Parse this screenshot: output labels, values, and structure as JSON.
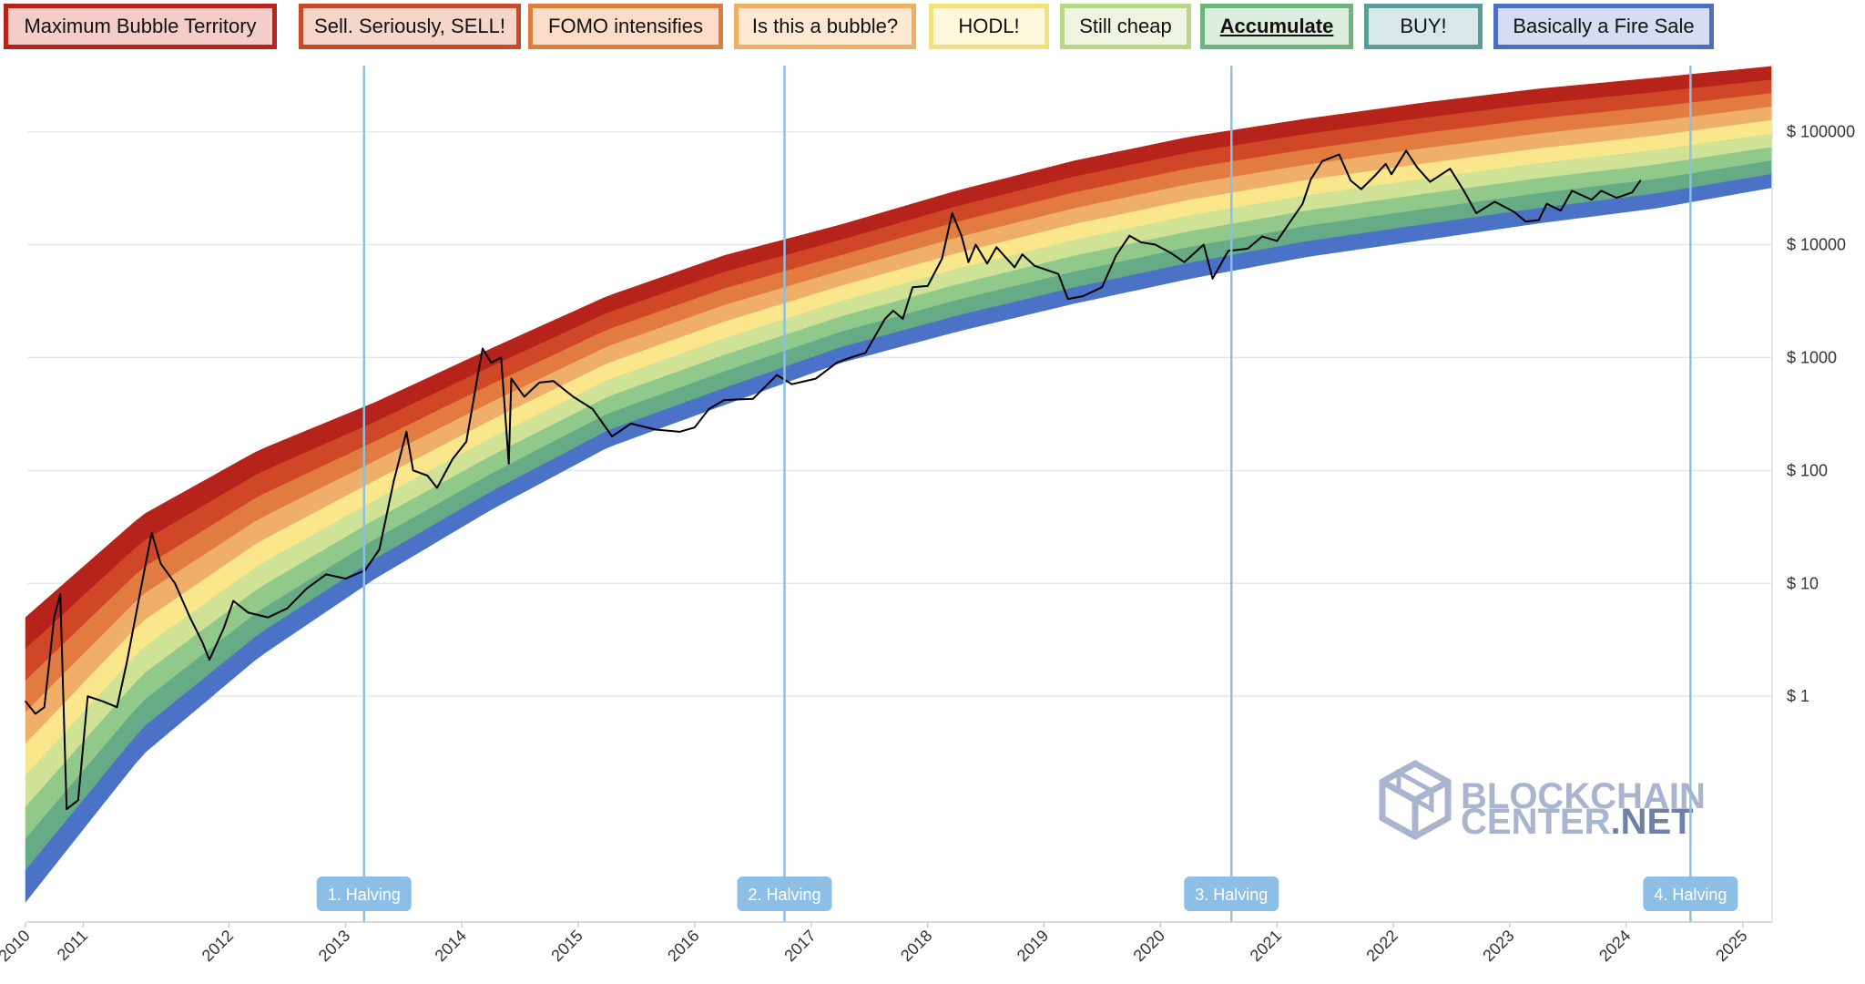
{
  "legend": {
    "items": [
      {
        "label": "Maximum Bubble Territory",
        "border": "#b5231b",
        "fill": "#f4cdc9"
      },
      {
        "label": "Sell. Seriously, SELL!",
        "border": "#c94a2a",
        "fill": "#f6d6cb"
      },
      {
        "label": "FOMO intensifies",
        "border": "#e07c3e",
        "fill": "#fadcc7"
      },
      {
        "label": "Is this a bubble?",
        "border": "#efae62",
        "fill": "#fde8d2"
      },
      {
        "label": "HODL!",
        "border": "#f2e17e",
        "fill": "#fdf8da"
      },
      {
        "label": "Still cheap",
        "border": "#b9d887",
        "fill": "#eef6e2"
      },
      {
        "label": "Accumulate",
        "border": "#6db57a",
        "fill": "#dcefdf",
        "active": true
      },
      {
        "label": "BUY!",
        "border": "#5a9c98",
        "fill": "#d8e8e8"
      },
      {
        "label": "Basically a Fire Sale",
        "border": "#4d6fc2",
        "fill": "#d6dcf2"
      }
    ]
  },
  "watermark": {
    "line1": "BLOCKCHAIN",
    "line2": "CENTER",
    "line2_suffix": ".NET"
  },
  "chart_data": {
    "type": "line",
    "title": "",
    "xlabel": "",
    "ylabel": "",
    "yscale": "log",
    "ylim": [
      0.01,
      400000
    ],
    "xlim": [
      "2010-01-01",
      "2025-01-01"
    ],
    "grid": true,
    "y_ticks": [
      {
        "value": 1,
        "label": "$ 1"
      },
      {
        "value": 10,
        "label": "$ 10"
      },
      {
        "value": 100,
        "label": "$ 100"
      },
      {
        "value": 1000,
        "label": "$ 1000"
      },
      {
        "value": 10000,
        "label": "$ 10000"
      },
      {
        "value": 100000,
        "label": "$ 100000"
      }
    ],
    "x_ticks": [
      {
        "date": "2010-01-01",
        "label": "2010"
      },
      {
        "date": "2010-07-01",
        "label": "2011"
      },
      {
        "date": "2011-10-01",
        "label": "2012"
      },
      {
        "date": "2012-10-01",
        "label": "2013"
      },
      {
        "date": "2013-10-01",
        "label": "2014"
      },
      {
        "date": "2014-10-01",
        "label": "2015"
      },
      {
        "date": "2015-10-01",
        "label": "2016"
      },
      {
        "date": "2016-10-01",
        "label": "2017"
      },
      {
        "date": "2017-10-01",
        "label": "2018"
      },
      {
        "date": "2018-10-01",
        "label": "2019"
      },
      {
        "date": "2019-10-01",
        "label": "2020"
      },
      {
        "date": "2020-10-01",
        "label": "2021"
      },
      {
        "date": "2021-10-01",
        "label": "2022"
      },
      {
        "date": "2022-10-01",
        "label": "2023"
      },
      {
        "date": "2023-10-01",
        "label": "2024"
      },
      {
        "date": "2024-10-01",
        "label": "2025"
      }
    ],
    "halvings": [
      {
        "date": "2012-11-28",
        "label": "1. Halving"
      },
      {
        "date": "2016-07-09",
        "label": "2. Halving"
      },
      {
        "date": "2020-05-11",
        "label": "3. Halving"
      },
      {
        "date": "2024-04-20",
        "label": "4. Halving"
      }
    ],
    "bands": {
      "names": [
        "Maximum Bubble Territory",
        "Sell. Seriously, SELL!",
        "FOMO intensifies",
        "Is this a bubble?",
        "HODL!",
        "Still cheap",
        "Accumulate",
        "BUY!",
        "Basically a Fire Sale"
      ],
      "colors": [
        "#b5231b",
        "#cf4727",
        "#e27b40",
        "#efae6a",
        "#fae68b",
        "#cfe296",
        "#90c98a",
        "#64ab86",
        "#4a72c6"
      ],
      "upper_edge": [
        {
          "date": "2010-01-01",
          "value": 5
        },
        {
          "date": "2011-01-01",
          "value": 40
        },
        {
          "date": "2012-01-01",
          "value": 150
        },
        {
          "date": "2013-01-01",
          "value": 400
        },
        {
          "date": "2014-01-01",
          "value": 1200
        },
        {
          "date": "2015-01-01",
          "value": 3500
        },
        {
          "date": "2016-01-01",
          "value": 8000
        },
        {
          "date": "2017-01-01",
          "value": 15000
        },
        {
          "date": "2018-01-01",
          "value": 30000
        },
        {
          "date": "2019-01-01",
          "value": 55000
        },
        {
          "date": "2020-01-01",
          "value": 90000
        },
        {
          "date": "2021-01-01",
          "value": 130000
        },
        {
          "date": "2022-01-01",
          "value": 180000
        },
        {
          "date": "2023-01-01",
          "value": 240000
        },
        {
          "date": "2024-01-01",
          "value": 300000
        },
        {
          "date": "2025-01-01",
          "value": 380000
        }
      ],
      "lower_edge": [
        {
          "date": "2010-01-01",
          "value": 0.015
        },
        {
          "date": "2011-01-01",
          "value": 0.3
        },
        {
          "date": "2012-01-01",
          "value": 2.2
        },
        {
          "date": "2013-01-01",
          "value": 11
        },
        {
          "date": "2014-01-01",
          "value": 45
        },
        {
          "date": "2015-01-01",
          "value": 160
        },
        {
          "date": "2016-01-01",
          "value": 380
        },
        {
          "date": "2017-01-01",
          "value": 900
        },
        {
          "date": "2018-01-01",
          "value": 1700
        },
        {
          "date": "2019-01-01",
          "value": 3000
        },
        {
          "date": "2020-01-01",
          "value": 5000
        },
        {
          "date": "2021-01-01",
          "value": 7800
        },
        {
          "date": "2022-01-01",
          "value": 11000
        },
        {
          "date": "2023-01-01",
          "value": 15500
        },
        {
          "date": "2024-01-01",
          "value": 21000
        },
        {
          "date": "2025-01-01",
          "value": 32000
        }
      ]
    },
    "series": [
      {
        "color": "#000000",
        "points": [
          {
            "date": "2010-01-01",
            "value": 0.9
          },
          {
            "date": "2010-02-01",
            "value": 0.7
          },
          {
            "date": "2010-03-01",
            "value": 0.8
          },
          {
            "date": "2010-04-01",
            "value": 5
          },
          {
            "date": "2010-04-20",
            "value": 8
          },
          {
            "date": "2010-05-10",
            "value": 0.1
          },
          {
            "date": "2010-06-15",
            "value": 0.12
          },
          {
            "date": "2010-07-15",
            "value": 1
          },
          {
            "date": "2010-09-01",
            "value": 0.9
          },
          {
            "date": "2010-10-15",
            "value": 0.8
          },
          {
            "date": "2010-11-15",
            "value": 2
          },
          {
            "date": "2011-01-01",
            "value": 10
          },
          {
            "date": "2011-02-01",
            "value": 28
          },
          {
            "date": "2011-03-01",
            "value": 15
          },
          {
            "date": "2011-04-15",
            "value": 10
          },
          {
            "date": "2011-06-01",
            "value": 5
          },
          {
            "date": "2011-07-10",
            "value": 3
          },
          {
            "date": "2011-08-01",
            "value": 2.1
          },
          {
            "date": "2011-09-15",
            "value": 4
          },
          {
            "date": "2011-10-15",
            "value": 7
          },
          {
            "date": "2011-12-01",
            "value": 5.5
          },
          {
            "date": "2012-02-01",
            "value": 5
          },
          {
            "date": "2012-04-01",
            "value": 6
          },
          {
            "date": "2012-06-01",
            "value": 9
          },
          {
            "date": "2012-08-01",
            "value": 12
          },
          {
            "date": "2012-10-01",
            "value": 11
          },
          {
            "date": "2012-12-01",
            "value": 13
          },
          {
            "date": "2013-01-15",
            "value": 20
          },
          {
            "date": "2013-03-01",
            "value": 80
          },
          {
            "date": "2013-04-10",
            "value": 220
          },
          {
            "date": "2013-05-01",
            "value": 100
          },
          {
            "date": "2013-06-15",
            "value": 90
          },
          {
            "date": "2013-07-15",
            "value": 70
          },
          {
            "date": "2013-09-01",
            "value": 125
          },
          {
            "date": "2013-10-15",
            "value": 180
          },
          {
            "date": "2013-11-20",
            "value": 700
          },
          {
            "date": "2013-12-05",
            "value": 1200
          },
          {
            "date": "2014-01-01",
            "value": 900
          },
          {
            "date": "2014-02-01",
            "value": 1000
          },
          {
            "date": "2014-02-25",
            "value": 115
          },
          {
            "date": "2014-03-05",
            "value": 650
          },
          {
            "date": "2014-04-15",
            "value": 450
          },
          {
            "date": "2014-06-01",
            "value": 600
          },
          {
            "date": "2014-07-15",
            "value": 620
          },
          {
            "date": "2014-09-15",
            "value": 450
          },
          {
            "date": "2014-11-15",
            "value": 350
          },
          {
            "date": "2015-01-15",
            "value": 200
          },
          {
            "date": "2015-03-15",
            "value": 260
          },
          {
            "date": "2015-06-01",
            "value": 230
          },
          {
            "date": "2015-08-15",
            "value": 220
          },
          {
            "date": "2015-10-01",
            "value": 240
          },
          {
            "date": "2015-11-15",
            "value": 350
          },
          {
            "date": "2016-01-01",
            "value": 420
          },
          {
            "date": "2016-04-01",
            "value": 430
          },
          {
            "date": "2016-06-15",
            "value": 700
          },
          {
            "date": "2016-08-01",
            "value": 580
          },
          {
            "date": "2016-10-15",
            "value": 650
          },
          {
            "date": "2016-12-20",
            "value": 900
          },
          {
            "date": "2017-02-01",
            "value": 1000
          },
          {
            "date": "2017-03-20",
            "value": 1100
          },
          {
            "date": "2017-05-20",
            "value": 2200
          },
          {
            "date": "2017-06-15",
            "value": 2600
          },
          {
            "date": "2017-07-15",
            "value": 2200
          },
          {
            "date": "2017-08-15",
            "value": 4200
          },
          {
            "date": "2017-10-01",
            "value": 4300
          },
          {
            "date": "2017-11-15",
            "value": 7500
          },
          {
            "date": "2017-12-17",
            "value": 19000
          },
          {
            "date": "2018-01-15",
            "value": 12000
          },
          {
            "date": "2018-02-06",
            "value": 7000
          },
          {
            "date": "2018-03-01",
            "value": 10000
          },
          {
            "date": "2018-04-06",
            "value": 6800
          },
          {
            "date": "2018-05-05",
            "value": 9500
          },
          {
            "date": "2018-07-01",
            "value": 6300
          },
          {
            "date": "2018-07-25",
            "value": 8200
          },
          {
            "date": "2018-09-01",
            "value": 6500
          },
          {
            "date": "2018-11-15",
            "value": 5500
          },
          {
            "date": "2018-12-15",
            "value": 3300
          },
          {
            "date": "2019-02-01",
            "value": 3500
          },
          {
            "date": "2019-04-01",
            "value": 4200
          },
          {
            "date": "2019-05-15",
            "value": 8000
          },
          {
            "date": "2019-06-26",
            "value": 12000
          },
          {
            "date": "2019-08-01",
            "value": 10500
          },
          {
            "date": "2019-09-15",
            "value": 10000
          },
          {
            "date": "2019-11-01",
            "value": 8500
          },
          {
            "date": "2019-12-15",
            "value": 7000
          },
          {
            "date": "2020-02-14",
            "value": 10000
          },
          {
            "date": "2020-03-13",
            "value": 5000
          },
          {
            "date": "2020-05-01",
            "value": 8800
          },
          {
            "date": "2020-07-01",
            "value": 9200
          },
          {
            "date": "2020-08-15",
            "value": 11800
          },
          {
            "date": "2020-10-01",
            "value": 10800
          },
          {
            "date": "2020-11-15",
            "value": 16500
          },
          {
            "date": "2020-12-20",
            "value": 23000
          },
          {
            "date": "2021-01-15",
            "value": 38000
          },
          {
            "date": "2021-02-20",
            "value": 55000
          },
          {
            "date": "2021-04-14",
            "value": 63000
          },
          {
            "date": "2021-05-20",
            "value": 37000
          },
          {
            "date": "2021-06-22",
            "value": 31000
          },
          {
            "date": "2021-08-01",
            "value": 40000
          },
          {
            "date": "2021-09-07",
            "value": 52000
          },
          {
            "date": "2021-09-25",
            "value": 42000
          },
          {
            "date": "2021-11-10",
            "value": 68000
          },
          {
            "date": "2021-12-15",
            "value": 48000
          },
          {
            "date": "2022-01-24",
            "value": 36000
          },
          {
            "date": "2022-03-28",
            "value": 47000
          },
          {
            "date": "2022-05-10",
            "value": 30000
          },
          {
            "date": "2022-06-18",
            "value": 19000
          },
          {
            "date": "2022-08-15",
            "value": 24000
          },
          {
            "date": "2022-10-15",
            "value": 19500
          },
          {
            "date": "2022-11-20",
            "value": 16000
          },
          {
            "date": "2022-12-31",
            "value": 16500
          },
          {
            "date": "2023-01-25",
            "value": 23000
          },
          {
            "date": "2023-03-10",
            "value": 20000
          },
          {
            "date": "2023-04-14",
            "value": 30000
          },
          {
            "date": "2023-06-15",
            "value": 25000
          },
          {
            "date": "2023-07-15",
            "value": 30000
          },
          {
            "date": "2023-09-01",
            "value": 26000
          },
          {
            "date": "2023-10-20",
            "value": 29000
          },
          {
            "date": "2023-11-15",
            "value": 37000
          }
        ]
      }
    ]
  }
}
